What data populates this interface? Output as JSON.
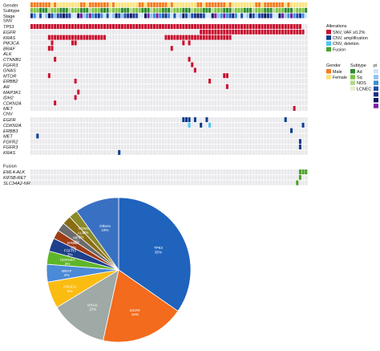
{
  "chart_data": [
    {
      "type": "heatmap",
      "title": "",
      "n_samples": 95,
      "clinical_tracks": [
        "Gender",
        "Subtype",
        "Stage"
      ],
      "sections": [
        {
          "name": "SNV",
          "genes": [
            "TP53",
            "EGFR",
            "KRAS",
            "PIK3CA",
            "BRAF",
            "ALK",
            "CTNNB1",
            "FGFR3",
            "GNAS",
            "MTOR",
            "ERBB2",
            "AR",
            "MAP3K1",
            "IDH2",
            "CDKN2A",
            "MET"
          ],
          "events": [
            {
              "gene": "EGFR",
              "samples": [
                58,
                59,
                60,
                61,
                62,
                63,
                64,
                65,
                66,
                67,
                68,
                69,
                70,
                71,
                72,
                73,
                74,
                75,
                76,
                77,
                78,
                79,
                80,
                81,
                82,
                83,
                84,
                85,
                86,
                87,
                88,
                89,
                90,
                91,
                92,
                93
              ]
            },
            {
              "gene": "KRAS",
              "samples": [
                6,
                7,
                8,
                9,
                10,
                11,
                12,
                13,
                14,
                15,
                16,
                17,
                18,
                19,
                20,
                21,
                22,
                23,
                24,
                25,
                46,
                47,
                48,
                49,
                50,
                51,
                52,
                53,
                54,
                55,
                56,
                57,
                58,
                59,
                60,
                61,
                62,
                63,
                64,
                65,
                66,
                67,
                68
              ]
            },
            {
              "gene": "PIK3CA",
              "samples": [
                7,
                14,
                15,
                52,
                54
              ]
            },
            {
              "gene": "BRAF",
              "samples": [
                6,
                7,
                48
              ]
            },
            {
              "gene": "CTNNB1",
              "samples": [
                8,
                54
              ]
            },
            {
              "gene": "FGFR3",
              "samples": [
                55
              ]
            },
            {
              "gene": "GNAS",
              "samples": [
                56
              ]
            },
            {
              "gene": "MTOR",
              "samples": [
                6,
                66,
                67
              ]
            },
            {
              "gene": "ERBB2",
              "samples": [
                15,
                61
              ]
            },
            {
              "gene": "AR",
              "samples": [
                67
              ]
            },
            {
              "gene": "MAP3K1",
              "samples": [
                16
              ]
            },
            {
              "gene": "IDH2",
              "samples": [
                15
              ]
            },
            {
              "gene": "CDKN2A",
              "samples": [
                8
              ]
            },
            {
              "gene": "MET",
              "samples": [
                90
              ]
            }
          ]
        },
        {
          "name": "CNV",
          "genes": [
            "EGFR",
            "CDKN2A",
            "ERBB3",
            "MET",
            "FGFR2",
            "FGFR3",
            "KRAS"
          ],
          "events": [
            {
              "gene": "EGFR",
              "type": "CNV, amplification",
              "samples": [
                52,
                53,
                54,
                56,
                60,
                87
              ]
            },
            {
              "gene": "CDKN2A",
              "type": "CNV, amplification",
              "samples": [
                58,
                93
              ]
            },
            {
              "gene": "CDKN2A",
              "type": "CNV, deletion",
              "samples": [
                54,
                61
              ]
            },
            {
              "gene": "ERBB3",
              "type": "CNV, amplification",
              "samples": [
                89
              ]
            },
            {
              "gene": "MET",
              "type": "CNV, amplification",
              "samples": [
                2
              ]
            },
            {
              "gene": "FGFR2",
              "type": "CNV, amplification",
              "samples": [
                92
              ]
            },
            {
              "gene": "FGFR3",
              "type": "CNV, amplification",
              "samples": [
                92
              ]
            },
            {
              "gene": "KRAS",
              "type": "CNV, amplification",
              "samples": [
                30
              ]
            }
          ]
        },
        {
          "name": "Fusion",
          "genes": [
            "EML4-ALK",
            "KIF5B-RET",
            "SLC34A2-NRG1"
          ],
          "events": [
            {
              "gene": "EML4-ALK",
              "samples": [
                92,
                93,
                94
              ]
            },
            {
              "gene": "KIF5B-RET",
              "samples": [
                92
              ]
            },
            {
              "gene": "SLC34A2-NRG1",
              "samples": [
                91
              ]
            }
          ]
        }
      ],
      "legend": {
        "alterations": {
          "title": "Alterations",
          "items": [
            {
              "label": "SNV, VAF ≥0.2%",
              "color": "#c8102e"
            },
            {
              "label": "CNV, amplification",
              "color": "#0b3c8c"
            },
            {
              "label": "CNV, deletion",
              "color": "#4cc3f5"
            },
            {
              "label": "Fusion",
              "color": "#4aa02c"
            }
          ]
        },
        "gender": {
          "title": "Gender",
          "items": [
            {
              "label": "Male",
              "color": "#f47c20"
            },
            {
              "label": "Female",
              "color": "#f9e27c"
            }
          ]
        },
        "subtype": {
          "title": "Subtype",
          "items": [
            {
              "label": "Ad",
              "color": "#2e8b2e"
            },
            {
              "label": "Sq",
              "color": "#7dc242"
            },
            {
              "label": "NOS",
              "color": "#b5d98a"
            },
            {
              "label": "LCNEC",
              "color": "#e5f1cf"
            }
          ]
        },
        "stage": {
          "title": "pi",
          "items": [
            {
              "label": "3",
              "color": "#cfe3f7"
            },
            {
              "label": "3",
              "color": "#8fc1ee"
            },
            {
              "label": "3",
              "color": "#3a8fd8"
            },
            {
              "label": "4",
              "color": "#1c4fa8"
            },
            {
              "label": "4",
              "color": "#1b2f8a"
            },
            {
              "label": "4",
              "color": "#0c1a5e"
            },
            {
              "label": "R",
              "color": "#7b1fa2"
            }
          ]
        }
      }
    },
    {
      "type": "pie",
      "title": "",
      "slices": [
        {
          "label": "TP53",
          "pct": "35%",
          "value": 35,
          "color": "#1f63bd"
        },
        {
          "label": "EGFR",
          "pct": "19%",
          "value": 19,
          "color": "#f36b1c"
        },
        {
          "label": "KRAS",
          "pct": "13%",
          "value": 13,
          "color": "#9fa9a6"
        },
        {
          "label": "PIK3CA",
          "pct": "6%",
          "value": 6,
          "color": "#fbbc12"
        },
        {
          "label": "BRAF",
          "pct": "4%",
          "value": 4,
          "color": "#4b8ad6"
        },
        {
          "label": "CDKN2A",
          "pct": "3%",
          "value": 3,
          "color": "#5fb52a"
        },
        {
          "label": "FGFR3",
          "pct": "3%",
          "value": 3,
          "color": "#1e3f8c"
        },
        {
          "label": "ERBB2",
          "pct": "2%",
          "value": 2,
          "color": "#9e3b15"
        },
        {
          "label": "MET",
          "pct": "2%",
          "value": 2,
          "color": "#6b6b6b"
        },
        {
          "label": "ALK",
          "pct": "2%",
          "value": 2,
          "color": "#8a6d12"
        },
        {
          "label": "CTNNB1",
          "pct": "2%",
          "value": 2,
          "color": "#8a8a2a"
        },
        {
          "label": "Others",
          "pct": "10%",
          "value": 10,
          "color": "#3a70c2"
        }
      ]
    }
  ]
}
